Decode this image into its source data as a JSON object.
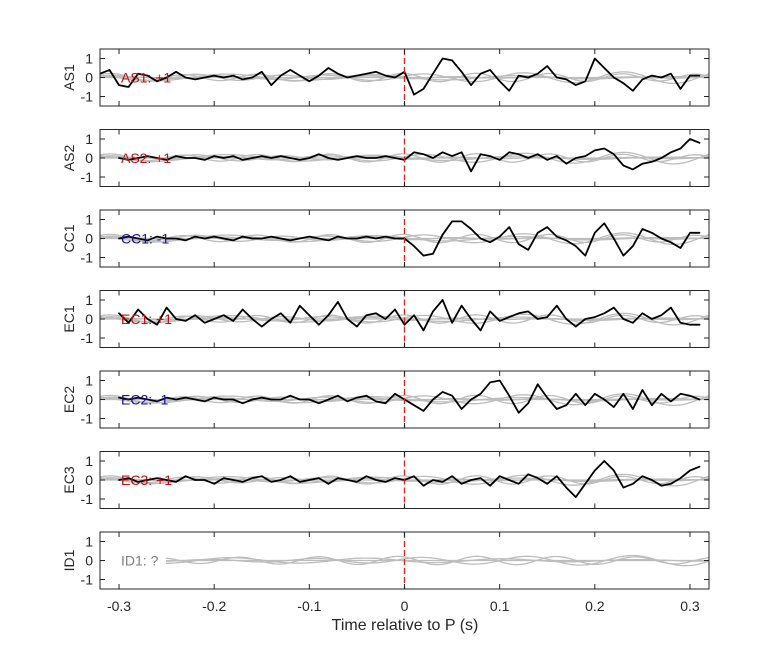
{
  "chart_data": {
    "type": "line",
    "xlabel": "Time relative to P (s)",
    "xlim": [
      -0.32,
      0.32
    ],
    "ylim": [
      -1.5,
      1.5
    ],
    "xticks": [
      -0.3,
      -0.2,
      -0.1,
      0,
      0.1,
      0.2,
      0.3
    ],
    "xtick_labels": [
      "-0.3",
      "-0.2",
      "-0.1",
      "0",
      "0.1",
      "0.2",
      "0.3"
    ],
    "yticks": [
      1,
      0,
      -1
    ],
    "ytick_labels": [
      "1",
      "0",
      "-1"
    ],
    "p_marker_time": 0,
    "colors": {
      "trace": "#000000",
      "background": "#bdbdbd",
      "marker": "#e02020",
      "positive": "#c01010",
      "negative": "#1010a0",
      "unknown": "#7f7f7f"
    },
    "panels": [
      {
        "ylabel": "AS1",
        "annotation": "AS1: +1",
        "polarity": "positive",
        "trace": {
          "x": [
            -0.32,
            -0.31,
            -0.3,
            -0.29,
            -0.28,
            -0.27,
            -0.26,
            -0.25,
            -0.24,
            -0.23,
            -0.22,
            -0.21,
            -0.2,
            -0.19,
            -0.18,
            -0.17,
            -0.16,
            -0.15,
            -0.14,
            -0.13,
            -0.12,
            -0.11,
            -0.1,
            -0.09,
            -0.08,
            -0.07,
            -0.06,
            -0.05,
            -0.04,
            -0.03,
            -0.02,
            -0.01,
            0,
            0.01,
            0.02,
            0.03,
            0.04,
            0.05,
            0.06,
            0.07,
            0.08,
            0.09,
            0.1,
            0.11,
            0.12,
            0.13,
            0.14,
            0.15,
            0.16,
            0.17,
            0.18,
            0.19,
            0.2,
            0.21,
            0.22,
            0.23,
            0.24,
            0.25,
            0.26,
            0.27,
            0.28,
            0.29,
            0.3,
            0.31
          ],
          "y": [
            0.2,
            0.4,
            -0.4,
            -0.5,
            0.2,
            0.1,
            -0.2,
            0.0,
            0.3,
            0.0,
            -0.1,
            0.0,
            0.1,
            0.0,
            0.1,
            -0.1,
            0.0,
            0.3,
            -0.4,
            0.1,
            0.4,
            0.1,
            -0.2,
            0.1,
            0.5,
            0.2,
            0.0,
            0.1,
            0.2,
            0.3,
            0.1,
            0.0,
            0.3,
            -0.9,
            -0.6,
            0.2,
            1.0,
            0.9,
            0.3,
            -0.4,
            0.2,
            0.4,
            -0.2,
            -0.7,
            0.1,
            0.0,
            0.2,
            0.6,
            0.0,
            -0.1,
            -0.4,
            -0.2,
            1.0,
            0.5,
            0.0,
            -0.3,
            -0.7,
            -0.1,
            0.1,
            0.0,
            0.2,
            -0.6,
            0.1,
            0.1
          ]
        }
      },
      {
        "ylabel": "AS2",
        "annotation": "AS2: +1",
        "polarity": "positive",
        "trace": {
          "x": [
            -0.3,
            -0.29,
            -0.28,
            -0.27,
            -0.26,
            -0.25,
            -0.24,
            -0.23,
            -0.22,
            -0.21,
            -0.2,
            -0.19,
            -0.18,
            -0.17,
            -0.16,
            -0.15,
            -0.14,
            -0.13,
            -0.12,
            -0.11,
            -0.1,
            -0.09,
            -0.08,
            -0.07,
            -0.06,
            -0.05,
            -0.04,
            -0.03,
            -0.02,
            -0.01,
            0,
            0.01,
            0.02,
            0.03,
            0.04,
            0.05,
            0.06,
            0.07,
            0.08,
            0.09,
            0.1,
            0.11,
            0.12,
            0.13,
            0.14,
            0.15,
            0.16,
            0.17,
            0.18,
            0.19,
            0.2,
            0.21,
            0.22,
            0.23,
            0.24,
            0.25,
            0.26,
            0.27,
            0.28,
            0.29,
            0.3,
            0.31
          ],
          "y": [
            0.0,
            -0.1,
            0.0,
            0.1,
            0.0,
            -0.1,
            0.1,
            0.0,
            0.0,
            -0.1,
            0.1,
            0.0,
            0.1,
            -0.1,
            0.0,
            0.1,
            0.0,
            0.1,
            0.0,
            -0.1,
            0.0,
            0.2,
            0.0,
            -0.1,
            0.0,
            0.1,
            0.0,
            0.0,
            0.1,
            0.0,
            -0.1,
            0.3,
            0.2,
            0.0,
            0.3,
            0.1,
            0.3,
            -0.7,
            0.2,
            0.1,
            -0.1,
            0.3,
            0.2,
            0.0,
            0.2,
            -0.1,
            0.1,
            -0.3,
            0.0,
            0.1,
            0.4,
            0.5,
            0.2,
            -0.4,
            -0.6,
            -0.3,
            -0.2,
            0.0,
            0.3,
            0.5,
            1.0,
            0.8
          ]
        }
      },
      {
        "ylabel": "CC1",
        "annotation": "CC1: -1",
        "polarity": "negative",
        "trace": {
          "x": [
            -0.3,
            -0.29,
            -0.28,
            -0.27,
            -0.26,
            -0.25,
            -0.24,
            -0.23,
            -0.22,
            -0.21,
            -0.2,
            -0.19,
            -0.18,
            -0.17,
            -0.16,
            -0.15,
            -0.14,
            -0.13,
            -0.12,
            -0.11,
            -0.1,
            -0.09,
            -0.08,
            -0.07,
            -0.06,
            -0.05,
            -0.04,
            -0.03,
            -0.02,
            -0.01,
            0,
            0.01,
            0.02,
            0.03,
            0.04,
            0.05,
            0.06,
            0.07,
            0.08,
            0.09,
            0.1,
            0.11,
            0.12,
            0.13,
            0.14,
            0.15,
            0.16,
            0.17,
            0.18,
            0.19,
            0.2,
            0.21,
            0.22,
            0.23,
            0.24,
            0.25,
            0.26,
            0.27,
            0.28,
            0.29,
            0.3,
            0.31
          ],
          "y": [
            0.0,
            0.1,
            0.0,
            -0.1,
            0.1,
            0.0,
            0.0,
            -0.1,
            0.1,
            0.0,
            0.1,
            0.0,
            -0.1,
            0.1,
            0.0,
            0.0,
            0.1,
            0.0,
            -0.1,
            0.0,
            0.1,
            0.0,
            -0.1,
            0.1,
            0.0,
            0.0,
            0.1,
            0.0,
            0.1,
            0.0,
            0.0,
            -0.4,
            -0.9,
            -0.8,
            0.2,
            0.9,
            0.9,
            0.5,
            0.0,
            -0.2,
            0.1,
            0.6,
            -0.3,
            -0.6,
            0.3,
            0.6,
            0.1,
            -0.1,
            -0.4,
            -0.9,
            0.3,
            0.8,
            0.0,
            -0.9,
            -0.4,
            0.5,
            0.3,
            0.0,
            -0.2,
            -0.5,
            0.3,
            0.3
          ]
        }
      },
      {
        "ylabel": "EC1",
        "annotation": "EC1: +1",
        "polarity": "positive",
        "trace": {
          "x": [
            -0.3,
            -0.29,
            -0.28,
            -0.27,
            -0.26,
            -0.25,
            -0.24,
            -0.23,
            -0.22,
            -0.21,
            -0.2,
            -0.19,
            -0.18,
            -0.17,
            -0.16,
            -0.15,
            -0.14,
            -0.13,
            -0.12,
            -0.11,
            -0.1,
            -0.09,
            -0.08,
            -0.07,
            -0.06,
            -0.05,
            -0.04,
            -0.03,
            -0.02,
            -0.01,
            0,
            0.01,
            0.02,
            0.03,
            0.04,
            0.05,
            0.06,
            0.07,
            0.08,
            0.09,
            0.1,
            0.11,
            0.12,
            0.13,
            0.14,
            0.15,
            0.16,
            0.17,
            0.18,
            0.19,
            0.2,
            0.21,
            0.22,
            0.23,
            0.24,
            0.25,
            0.26,
            0.27,
            0.28,
            0.29,
            0.3,
            0.31
          ],
          "y": [
            0.3,
            -0.2,
            0.5,
            0.0,
            -0.3,
            0.6,
            0.0,
            -0.1,
            0.2,
            -0.2,
            0.0,
            0.2,
            -0.1,
            0.5,
            0.0,
            -0.4,
            0.0,
            0.3,
            -0.2,
            0.7,
            0.2,
            -0.3,
            0.2,
            0.9,
            0.0,
            -0.4,
            0.2,
            0.3,
            0.0,
            0.5,
            -0.3,
            0.2,
            -0.6,
            0.4,
            1.0,
            -0.2,
            0.7,
            0.0,
            -0.6,
            0.4,
            -0.1,
            0.1,
            0.3,
            0.4,
            0.0,
            0.1,
            0.7,
            0.0,
            -0.4,
            0.0,
            0.1,
            0.3,
            0.6,
            0.0,
            -0.2,
            0.3,
            0.0,
            0.2,
            0.6,
            -0.2,
            -0.3,
            -0.3
          ]
        }
      },
      {
        "ylabel": "EC2",
        "annotation": "EC2: -1",
        "polarity": "negative",
        "trace": {
          "x": [
            -0.3,
            -0.29,
            -0.28,
            -0.27,
            -0.26,
            -0.25,
            -0.24,
            -0.23,
            -0.22,
            -0.21,
            -0.2,
            -0.19,
            -0.18,
            -0.17,
            -0.16,
            -0.15,
            -0.14,
            -0.13,
            -0.12,
            -0.11,
            -0.1,
            -0.09,
            -0.08,
            -0.07,
            -0.06,
            -0.05,
            -0.04,
            -0.03,
            -0.02,
            -0.01,
            0,
            0.01,
            0.02,
            0.03,
            0.04,
            0.05,
            0.06,
            0.07,
            0.08,
            0.09,
            0.1,
            0.11,
            0.12,
            0.13,
            0.14,
            0.15,
            0.16,
            0.17,
            0.18,
            0.19,
            0.2,
            0.21,
            0.22,
            0.23,
            0.24,
            0.25,
            0.26,
            0.27,
            0.28,
            0.29,
            0.3,
            0.31
          ],
          "y": [
            0.1,
            0.0,
            0.1,
            0.0,
            -0.1,
            0.1,
            0.0,
            0.1,
            0.0,
            -0.1,
            0.1,
            0.0,
            0.0,
            -0.2,
            0.0,
            0.1,
            0.0,
            0.0,
            0.2,
            0.0,
            0.0,
            -0.2,
            0.0,
            0.2,
            -0.1,
            0.1,
            0.2,
            -0.1,
            -0.2,
            0.3,
            0.0,
            -0.3,
            -0.6,
            0.0,
            0.4,
            0.2,
            -0.5,
            0.0,
            0.3,
            0.9,
            1.0,
            0.2,
            -0.7,
            -0.2,
            0.8,
            0.1,
            -0.5,
            -0.3,
            0.3,
            -0.3,
            0.3,
            0.0,
            -0.4,
            0.3,
            -0.5,
            0.5,
            -0.3,
            0.3,
            -0.1,
            0.3,
            0.2,
            0.0
          ]
        }
      },
      {
        "ylabel": "EC3",
        "annotation": "EC3: +1",
        "polarity": "positive",
        "trace": {
          "x": [
            -0.3,
            -0.29,
            -0.28,
            -0.27,
            -0.26,
            -0.25,
            -0.24,
            -0.23,
            -0.22,
            -0.21,
            -0.2,
            -0.19,
            -0.18,
            -0.17,
            -0.16,
            -0.15,
            -0.14,
            -0.13,
            -0.12,
            -0.11,
            -0.1,
            -0.09,
            -0.08,
            -0.07,
            -0.06,
            -0.05,
            -0.04,
            -0.03,
            -0.02,
            -0.01,
            0,
            0.01,
            0.02,
            0.03,
            0.04,
            0.05,
            0.06,
            0.07,
            0.08,
            0.09,
            0.1,
            0.11,
            0.12,
            0.13,
            0.14,
            0.15,
            0.16,
            0.17,
            0.18,
            0.19,
            0.2,
            0.21,
            0.22,
            0.23,
            0.24,
            0.25,
            0.26,
            0.27,
            0.28,
            0.29,
            0.3,
            0.31
          ],
          "y": [
            0.0,
            0.1,
            -0.1,
            0.0,
            0.1,
            0.0,
            -0.1,
            0.2,
            0.0,
            0.0,
            -0.2,
            0.1,
            0.0,
            -0.1,
            0.1,
            0.2,
            -0.1,
            0.0,
            0.2,
            -0.1,
            0.0,
            0.1,
            -0.2,
            0.1,
            0.0,
            -0.1,
            0.2,
            0.0,
            -0.1,
            0.1,
            0.0,
            0.2,
            -0.3,
            0.0,
            -0.1,
            0.2,
            -0.2,
            0.0,
            0.1,
            -0.3,
            0.2,
            0.0,
            -0.2,
            0.3,
            0.1,
            -0.2,
            0.2,
            -0.4,
            -0.9,
            -0.2,
            0.5,
            1.0,
            0.5,
            -0.4,
            -0.2,
            0.2,
            0.0,
            -0.3,
            -0.2,
            0.1,
            0.5,
            0.7
          ]
        }
      },
      {
        "ylabel": "ID1",
        "annotation": "ID1: ?",
        "polarity": "unknown",
        "trace": null
      }
    ],
    "background_traces": [
      {
        "amp": 0.32,
        "freq": 9.5,
        "phase": 0.4,
        "start": -0.32
      },
      {
        "amp": 0.22,
        "freq": 13.0,
        "phase": 1.7,
        "start": -0.32
      },
      {
        "amp": 0.18,
        "freq": 6.5,
        "phase": 2.9,
        "start": -0.32
      },
      {
        "amp": 0.27,
        "freq": 11.0,
        "phase": 4.1,
        "start": -0.32
      }
    ],
    "id1_background_traces": [
      {
        "amp": 0.28,
        "freq": 9.0,
        "phase": 0.6,
        "start": -0.25
      },
      {
        "amp": 0.22,
        "freq": 12.0,
        "phase": 2.1,
        "start": -0.25
      },
      {
        "amp": 0.15,
        "freq": 7.0,
        "phase": 3.3,
        "start": -0.25
      }
    ]
  }
}
